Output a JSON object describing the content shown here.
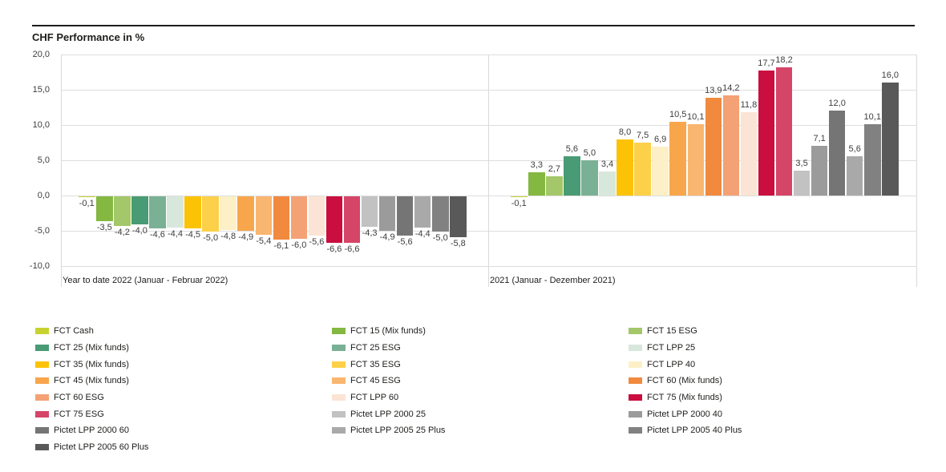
{
  "header": {
    "title": "CHF Performance in %"
  },
  "chart_data": {
    "type": "bar",
    "title": "CHF Performance in %",
    "ylabel": "CHF Performance in %",
    "ylim": [
      -10.0,
      20.0
    ],
    "yticks": [
      20,
      15,
      10,
      5,
      0,
      -5,
      -10
    ],
    "ytick_labels": [
      "20,0",
      "15,0",
      "10,0",
      "5,0",
      "0,0",
      "-5,0",
      "-10,0"
    ],
    "grid": true,
    "decimal_separator": ",",
    "legend_position": "bottom",
    "legend_columns": 3,
    "groups": [
      {
        "label": "Year to date 2022 (Januar - Februar 2022)"
      },
      {
        "label": "2021 (Januar - Dezember 2021)"
      }
    ],
    "series": [
      {
        "name": "FCT Cash",
        "color": "#c8d22f",
        "values": [
          -0.1,
          -0.1
        ],
        "value_labels": [
          "-0,1",
          "-0,1"
        ]
      },
      {
        "name": "FCT 15 (Mix funds)",
        "color": "#84b841",
        "values": [
          -3.5,
          3.3
        ],
        "value_labels": [
          "-3,5",
          "3,3"
        ]
      },
      {
        "name": "FCT 15 ESG",
        "color": "#a3c769",
        "values": [
          -4.2,
          2.7
        ],
        "value_labels": [
          "-4,2",
          "2,7"
        ]
      },
      {
        "name": "FCT 25 (Mix funds)",
        "color": "#489b74",
        "values": [
          -4.0,
          5.6
        ],
        "value_labels": [
          "-4,0",
          "5,6"
        ]
      },
      {
        "name": "FCT 25 ESG",
        "color": "#7ab094",
        "values": [
          -4.6,
          5.0
        ],
        "value_labels": [
          "-4,6",
          "5,0"
        ]
      },
      {
        "name": "FCT LPP 25",
        "color": "#d8e7dc",
        "values": [
          -4.4,
          3.4
        ],
        "value_labels": [
          "-4,4",
          "3,4"
        ]
      },
      {
        "name": "FCT 35 (Mix funds)",
        "color": "#fcc306",
        "values": [
          -4.5,
          8.0
        ],
        "value_labels": [
          "-4,5",
          "8,0"
        ]
      },
      {
        "name": "FCT 35 ESG",
        "color": "#fdd049",
        "values": [
          -5.0,
          7.5
        ],
        "value_labels": [
          "-5,0",
          "7,5"
        ]
      },
      {
        "name": "FCT LPP 40",
        "color": "#fdf0c6",
        "values": [
          -4.8,
          6.9
        ],
        "value_labels": [
          "-4,8",
          "6,9"
        ]
      },
      {
        "name": "FCT 45 (Mix funds)",
        "color": "#f8a64b",
        "values": [
          -4.9,
          10.5
        ],
        "value_labels": [
          "-4,9",
          "10,5"
        ]
      },
      {
        "name": "FCT 45 ESG",
        "color": "#f9b670",
        "values": [
          -5.4,
          10.1
        ],
        "value_labels": [
          "-5,4",
          "10,1"
        ]
      },
      {
        "name": "FCT 60 (Mix funds)",
        "color": "#f1893f",
        "values": [
          -6.1,
          13.9
        ],
        "value_labels": [
          "-6,1",
          "13,9"
        ]
      },
      {
        "name": "FCT 60 ESG",
        "color": "#f4a175",
        "values": [
          -6.0,
          14.2
        ],
        "value_labels": [
          "-6,0",
          "14,2"
        ]
      },
      {
        "name": "FCT LPP 60",
        "color": "#fbe4d5",
        "values": [
          -5.6,
          11.8
        ],
        "value_labels": [
          "-5,6",
          "11,8"
        ]
      },
      {
        "name": "FCT 75 (Mix funds)",
        "color": "#ca0e3f",
        "values": [
          -6.6,
          17.7
        ],
        "value_labels": [
          "-6,6",
          "17,7"
        ]
      },
      {
        "name": "FCT 75 ESG",
        "color": "#d54568",
        "values": [
          -6.6,
          18.2
        ],
        "value_labels": [
          "-6,6",
          "18,2"
        ]
      },
      {
        "name": "Pictet LPP 2000 25",
        "color": "#c2c2c2",
        "values": [
          -4.3,
          3.5
        ],
        "value_labels": [
          "-4,3",
          "3,5"
        ]
      },
      {
        "name": "Pictet LPP 2000 40",
        "color": "#9b9b9b",
        "values": [
          -4.9,
          7.1
        ],
        "value_labels": [
          "-4,9",
          "7,1"
        ]
      },
      {
        "name": "Pictet LPP 2000 60",
        "color": "#757575",
        "values": [
          -5.6,
          12.0
        ],
        "value_labels": [
          "-5,6",
          "12,0"
        ]
      },
      {
        "name": "Pictet LPP 2005 25 Plus",
        "color": "#a9a9a9",
        "values": [
          -4.4,
          5.6
        ],
        "value_labels": [
          "-4,4",
          "5,6"
        ]
      },
      {
        "name": "Pictet LPP 2005 40 Plus",
        "color": "#818181",
        "values": [
          -5.0,
          10.1
        ],
        "value_labels": [
          "-5,0",
          "10,1"
        ]
      },
      {
        "name": "Pictet LPP 2005 60 Plus",
        "color": "#595959",
        "values": [
          -5.8,
          16.0
        ],
        "value_labels": [
          "-5,8",
          "16,0"
        ]
      }
    ]
  }
}
